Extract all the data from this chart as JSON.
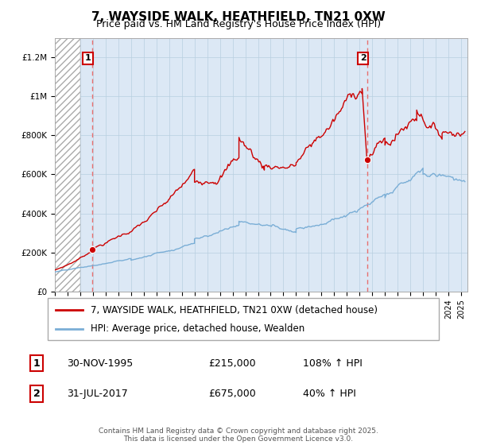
{
  "title": "7, WAYSIDE WALK, HEATHFIELD, TN21 0XW",
  "subtitle": "Price paid vs. HM Land Registry's House Price Index (HPI)",
  "ylim": [
    0,
    1300000
  ],
  "xlim_start": 1993.0,
  "xlim_end": 2025.5,
  "hatch_end_year": 1995.0,
  "sale1_date": 1995.917,
  "sale1_price": 215000,
  "sale1_label": "1",
  "sale1_info": "30-NOV-1995",
  "sale1_amount": "£215,000",
  "sale1_hpi": "108% ↑ HPI",
  "sale2_date": 2017.583,
  "sale2_price": 675000,
  "sale2_label": "2",
  "sale2_info": "31-JUL-2017",
  "sale2_amount": "£675,000",
  "sale2_hpi": "40% ↑ HPI",
  "red_line_color": "#cc0000",
  "blue_line_color": "#7aaed6",
  "plot_bg_color": "#dce8f5",
  "grid_color": "#b8cfe0",
  "vline_color": "#e87070",
  "legend1": "7, WAYSIDE WALK, HEATHFIELD, TN21 0XW (detached house)",
  "legend2": "HPI: Average price, detached house, Wealden",
  "footer": "Contains HM Land Registry data © Crown copyright and database right 2025.\nThis data is licensed under the Open Government Licence v3.0.",
  "yticks": [
    0,
    200000,
    400000,
    600000,
    800000,
    1000000,
    1200000
  ],
  "ytick_labels": [
    "£0",
    "£200K",
    "£400K",
    "£600K",
    "£800K",
    "£1M",
    "£1.2M"
  ],
  "title_fontsize": 11,
  "subtitle_fontsize": 9,
  "tick_fontsize": 7.5,
  "legend_fontsize": 8.5,
  "footer_fontsize": 6.5
}
